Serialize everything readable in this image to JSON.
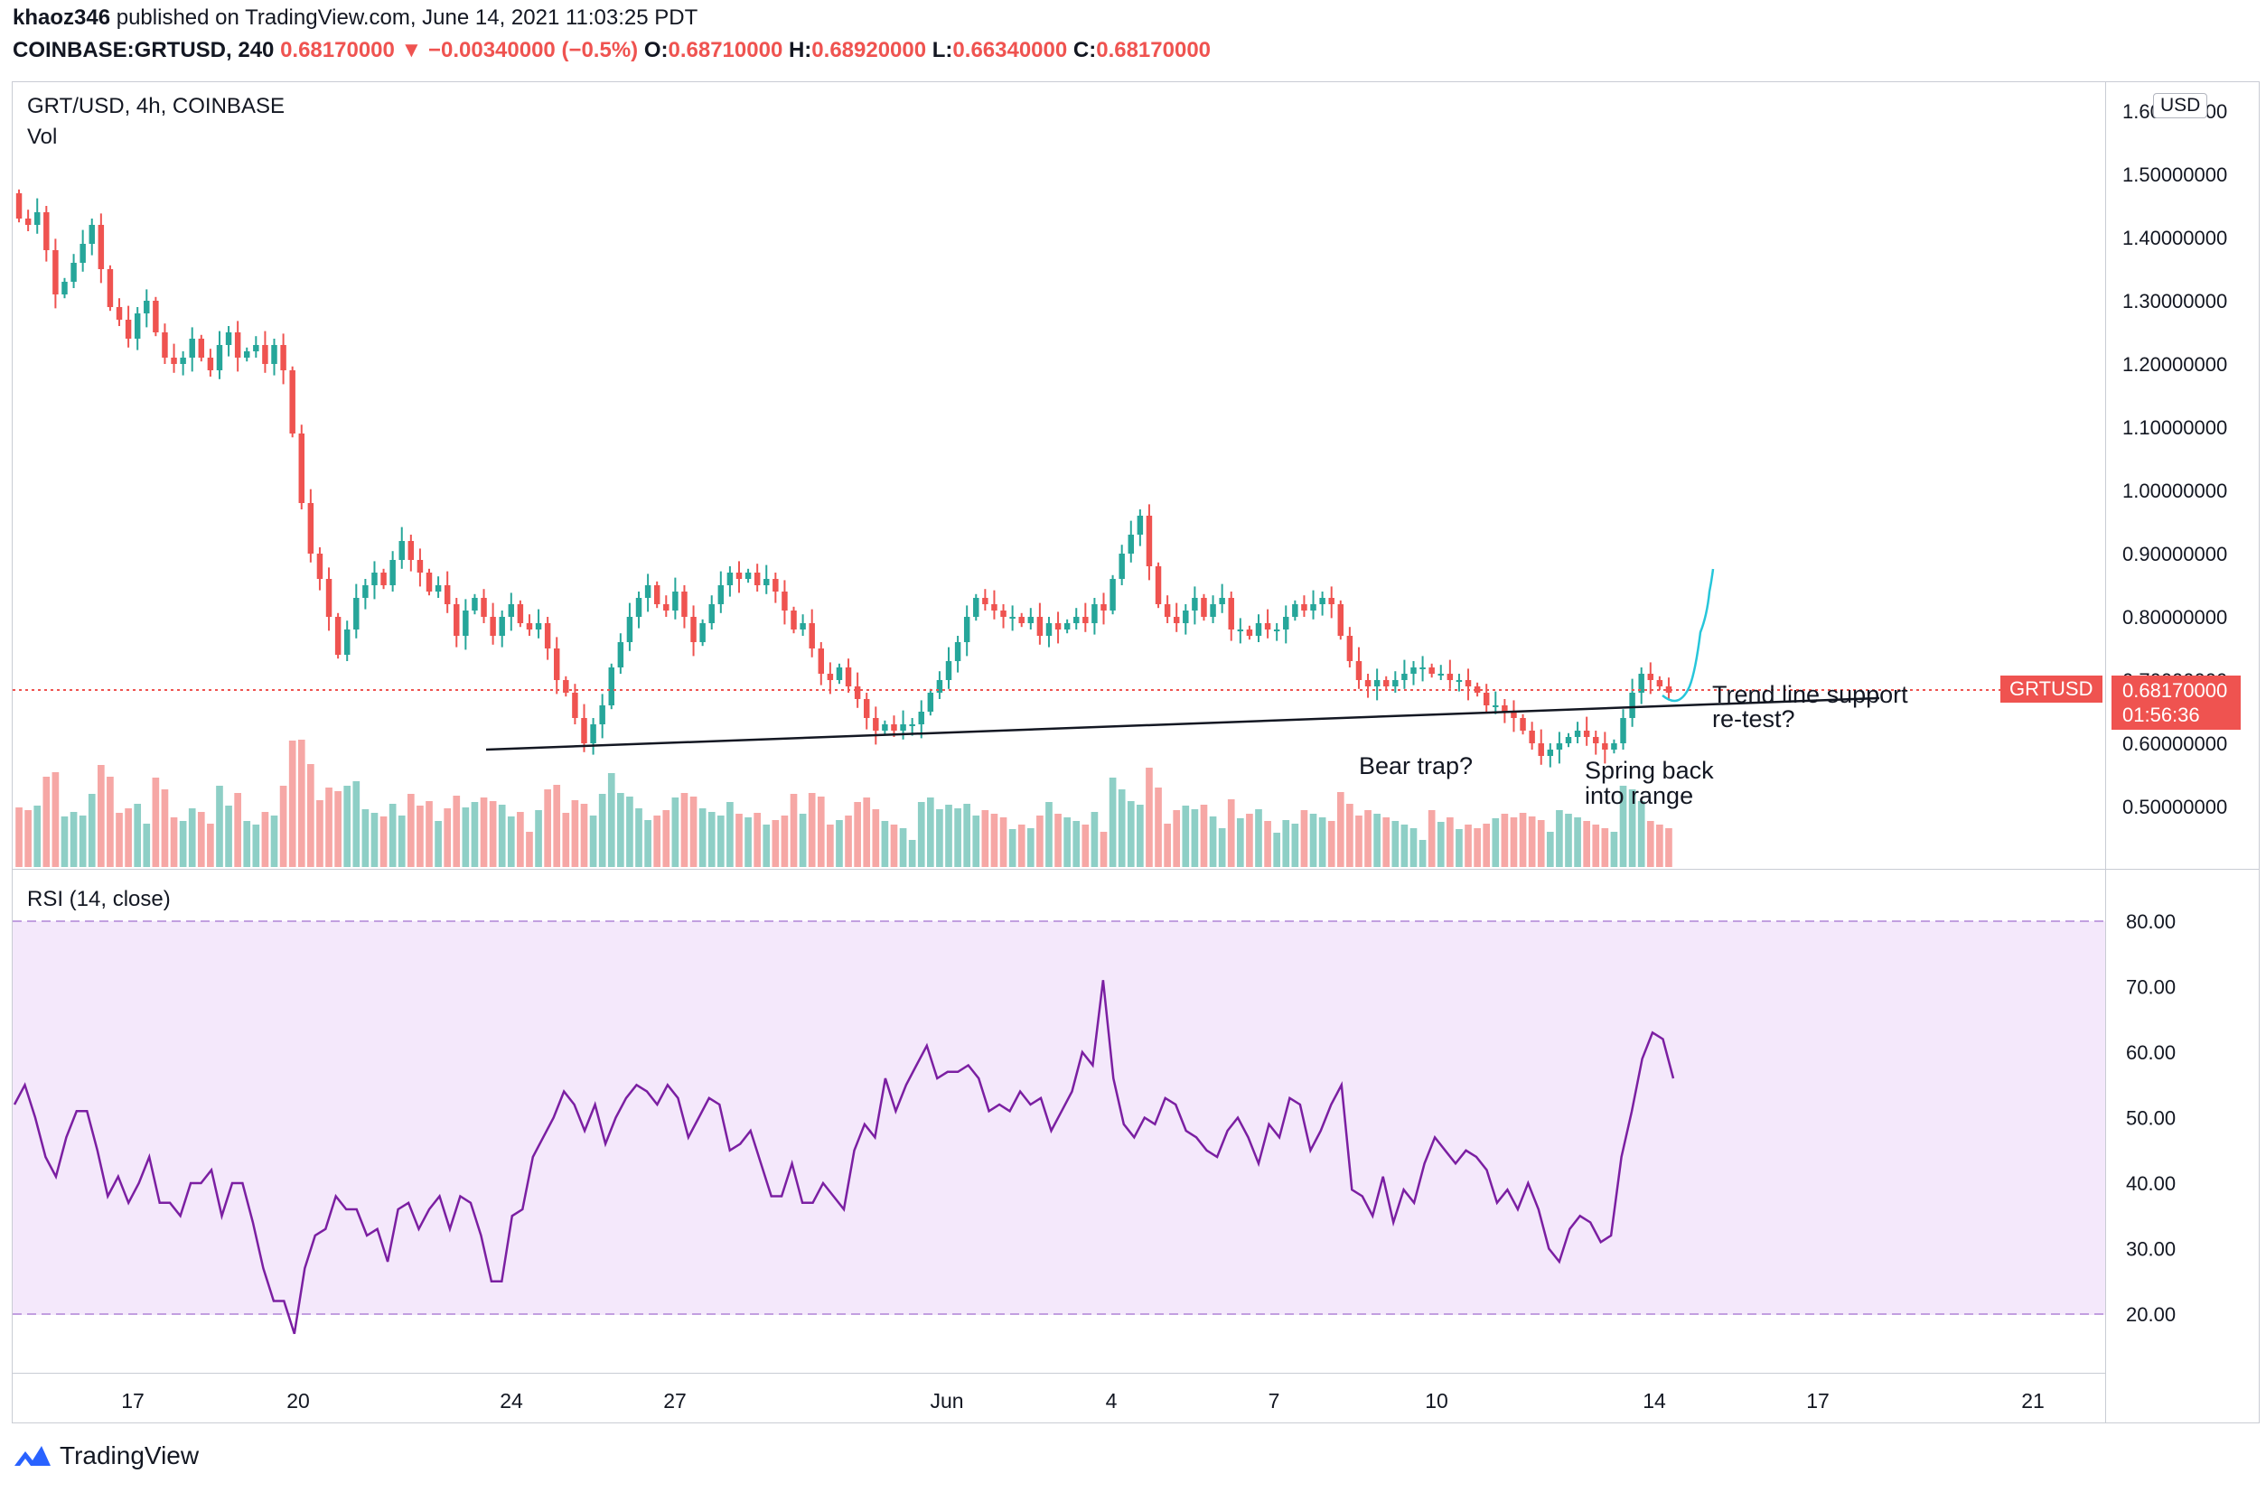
{
  "header": {
    "author": "khaoz346",
    "published": "published on TradingView.com, June 14, 2021 11:03:25 PDT",
    "symbol": "COINBASE:GRTUSD, 240",
    "last": "0.68170000",
    "change_arrow": "▼",
    "change": "−0.00340000 (−0.5%)",
    "o_label": "O:",
    "o": "0.68710000",
    "h_label": "H:",
    "h": "0.68920000",
    "l_label": "L:",
    "l": "0.66340000",
    "c_label": "C:",
    "c": "0.68170000"
  },
  "pane_main": {
    "legend": "GRT/USD, 4h, COINBASE",
    "vol_label": "Vol",
    "currency_button": "USD",
    "price_ticks": [
      "1.60000000",
      "1.50000000",
      "1.40000000",
      "1.30000000",
      "1.20000000",
      "1.10000000",
      "1.00000000",
      "0.90000000",
      "0.80000000",
      "0.70000000",
      "0.60000000",
      "0.50000000"
    ],
    "last_price_label": "GRTUSD",
    "last_price": "0.68170000",
    "countdown": "01:56:36",
    "annotations": {
      "bear_trap": "Bear trap?",
      "spring_1": "Spring back",
      "spring_2": "into range",
      "trend_1": "Trend line support",
      "trend_2": "re-test?"
    }
  },
  "pane_rsi": {
    "legend": "RSI (14, close)",
    "ticks": [
      "80.00",
      "70.00",
      "60.00",
      "50.00",
      "40.00",
      "30.00",
      "20.00"
    ]
  },
  "time_axis": [
    "17",
    "20",
    "24",
    "27",
    "Jun",
    "4",
    "7",
    "10",
    "14",
    "17",
    "21"
  ],
  "footer": {
    "brand": "TradingView"
  },
  "colors": {
    "up": "#26a69a",
    "down": "#ef5350",
    "vol_up": "#8ecfc6",
    "vol_down": "#f6a7a5",
    "rsi_line": "#7b1fa2",
    "rsi_band": "#f4e8fb"
  },
  "chart_data": [
    {
      "type": "candlestick",
      "title": "GRT/USD, 4h, COINBASE",
      "ylim": [
        0.4,
        1.65
      ],
      "close_approx": [
        1.43,
        1.42,
        1.44,
        1.38,
        1.31,
        1.33,
        1.36,
        1.39,
        1.42,
        1.35,
        1.29,
        1.27,
        1.24,
        1.28,
        1.3,
        1.25,
        1.21,
        1.2,
        1.21,
        1.24,
        1.21,
        1.19,
        1.23,
        1.25,
        1.21,
        1.22,
        1.23,
        1.2,
        1.23,
        1.19,
        1.09,
        0.98,
        0.9,
        0.86,
        0.8,
        0.74,
        0.78,
        0.83,
        0.85,
        0.87,
        0.85,
        0.89,
        0.92,
        0.89,
        0.87,
        0.84,
        0.85,
        0.82,
        0.77,
        0.81,
        0.83,
        0.8,
        0.77,
        0.8,
        0.82,
        0.79,
        0.78,
        0.79,
        0.75,
        0.7,
        0.68,
        0.64,
        0.6,
        0.63,
        0.66,
        0.72,
        0.76,
        0.8,
        0.83,
        0.85,
        0.82,
        0.81,
        0.84,
        0.8,
        0.76,
        0.79,
        0.82,
        0.85,
        0.87,
        0.86,
        0.87,
        0.85,
        0.86,
        0.84,
        0.81,
        0.78,
        0.79,
        0.75,
        0.71,
        0.7,
        0.72,
        0.69,
        0.67,
        0.64,
        0.62,
        0.63,
        0.62,
        0.63,
        0.63,
        0.65,
        0.68,
        0.7,
        0.73,
        0.76,
        0.8,
        0.83,
        0.82,
        0.81,
        0.8,
        0.8,
        0.79,
        0.8,
        0.77,
        0.79,
        0.78,
        0.79,
        0.8,
        0.79,
        0.82,
        0.81,
        0.86,
        0.9,
        0.93,
        0.96,
        0.88,
        0.82,
        0.8,
        0.79,
        0.81,
        0.83,
        0.8,
        0.82,
        0.83,
        0.78,
        0.78,
        0.77,
        0.79,
        0.78,
        0.78,
        0.8,
        0.82,
        0.81,
        0.82,
        0.83,
        0.82,
        0.77,
        0.73,
        0.7,
        0.69,
        0.7,
        0.69,
        0.7,
        0.71,
        0.72,
        0.72,
        0.71,
        0.71,
        0.7,
        0.7,
        0.69,
        0.68,
        0.66,
        0.66,
        0.65,
        0.64,
        0.62,
        0.6,
        0.58,
        0.59,
        0.6,
        0.61,
        0.62,
        0.61,
        0.6,
        0.59,
        0.6,
        0.64,
        0.68,
        0.71,
        0.7,
        0.69,
        0.68
      ]
    },
    {
      "type": "line",
      "title": "RSI (14, close)",
      "ylim": [
        15,
        82
      ],
      "values": [
        52,
        55,
        50,
        44,
        41,
        47,
        51,
        51,
        45,
        38,
        41,
        37,
        40,
        44,
        37,
        37,
        35,
        40,
        40,
        42,
        35,
        40,
        40,
        34,
        27,
        22,
        22,
        17,
        27,
        32,
        33,
        38,
        36,
        36,
        32,
        33,
        28,
        36,
        37,
        33,
        36,
        38,
        33,
        38,
        37,
        32,
        25,
        25,
        35,
        36,
        44,
        47,
        50,
        54,
        52,
        48,
        52,
        46,
        50,
        53,
        55,
        54,
        52,
        55,
        53,
        47,
        50,
        53,
        52,
        45,
        46,
        48,
        43,
        38,
        38,
        43,
        37,
        37,
        40,
        38,
        36,
        45,
        49,
        47,
        56,
        51,
        55,
        58,
        61,
        56,
        57,
        57,
        58,
        56,
        51,
        52,
        51,
        54,
        52,
        53,
        48,
        51,
        54,
        60,
        58,
        71,
        56,
        49,
        47,
        50,
        49,
        53,
        52,
        48,
        47,
        45,
        44,
        48,
        50,
        47,
        43,
        49,
        47,
        53,
        52,
        45,
        48,
        52,
        55,
        39,
        38,
        35,
        41,
        34,
        39,
        37,
        43,
        47,
        45,
        43,
        45,
        44,
        42,
        37,
        39,
        36,
        40,
        36,
        30,
        28,
        33,
        35,
        34,
        31,
        32,
        44,
        51,
        59,
        63,
        62,
        56
      ],
      "reference_lines": [
        80,
        20
      ]
    }
  ]
}
